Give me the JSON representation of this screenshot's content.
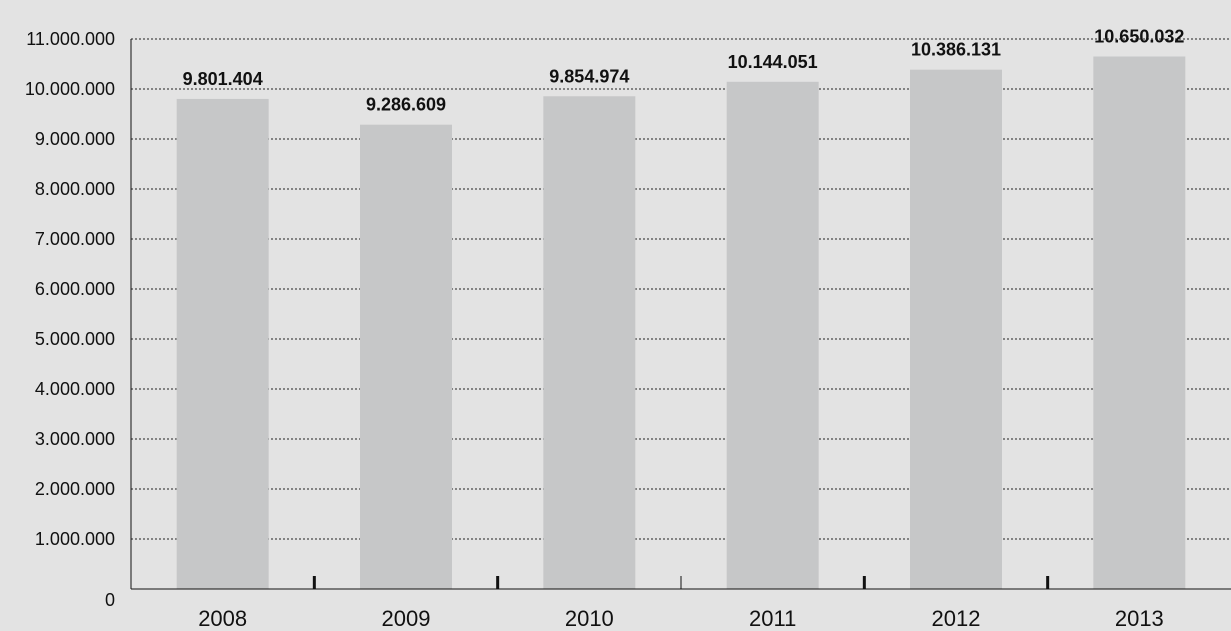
{
  "chart_data": {
    "type": "bar",
    "categories": [
      "2008",
      "2009",
      "2010",
      "2011",
      "2012",
      "2013"
    ],
    "values": [
      9801404,
      9286609,
      9854974,
      10144051,
      10386131,
      10650032
    ],
    "data_labels": [
      "9.801.404",
      "9.286.609",
      "9.854.974",
      "10.144.051",
      "10.386.131",
      "10.650.032"
    ],
    "ylim": [
      0,
      11000000
    ],
    "yticks": [
      0,
      1000000,
      2000000,
      3000000,
      4000000,
      5000000,
      6000000,
      7000000,
      8000000,
      9000000,
      10000000,
      11000000
    ],
    "ytick_labels": [
      "0",
      "1.000.000",
      "2.000.000",
      "3.000.000",
      "4.000.000",
      "5.000.000",
      "6.000.000",
      "7.000.000",
      "8.000.000",
      "9.000.000",
      "10.000.000",
      "11.000.000"
    ],
    "grid": "horizontal dotted",
    "colors": {
      "bar": "#c6c7c8",
      "background": "#e3e3e3",
      "axis": "#111111"
    }
  }
}
